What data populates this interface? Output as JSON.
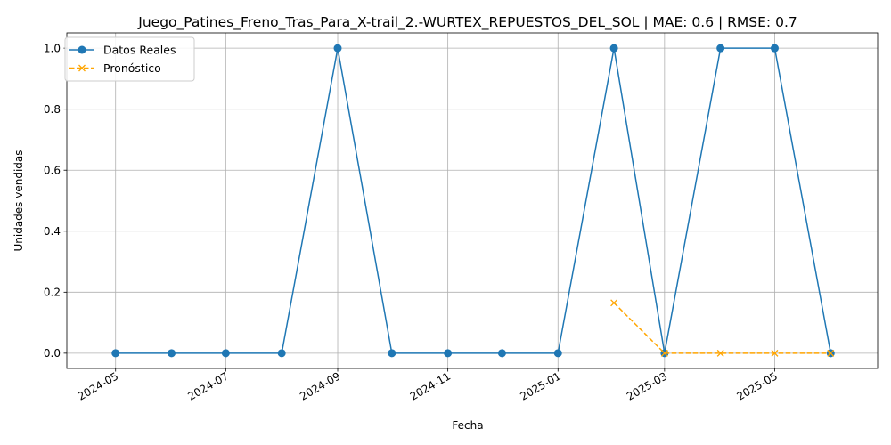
{
  "chart_data": {
    "type": "line",
    "title": "Juego_Patines_Freno_Tras_Para_X-trail_2.-WURTEX_REPUESTOS_DEL_SOL | MAE: 0.6 | RMSE: 0.7",
    "xlabel": "Fecha",
    "ylabel": "Unidades vendidas",
    "ylim": [
      -0.05,
      1.05
    ],
    "xlim": [
      "2024-04-04",
      "2025-06-27"
    ],
    "grid": true,
    "legend_position": "top-left",
    "x_ticks": [
      "2024-05",
      "2024-07",
      "2024-09",
      "2024-11",
      "2025-01",
      "2025-03",
      "2025-05"
    ],
    "x_tick_dates": [
      "2024-05-01",
      "2024-07-01",
      "2024-09-01",
      "2024-11-01",
      "2025-01-01",
      "2025-03-01",
      "2025-05-01"
    ],
    "y_ticks": [
      "0.0",
      "0.2",
      "0.4",
      "0.6",
      "0.8",
      "1.0"
    ],
    "y_tick_values": [
      0.0,
      0.2,
      0.4,
      0.6,
      0.8,
      1.0
    ],
    "series": [
      {
        "name": "Datos Reales",
        "color": "#1f77b4",
        "marker": "circle",
        "line_style": "solid",
        "x": [
          "2024-05-01",
          "2024-06-01",
          "2024-07-01",
          "2024-08-01",
          "2024-09-01",
          "2024-10-01",
          "2024-11-01",
          "2024-12-01",
          "2025-01-01",
          "2025-02-01",
          "2025-03-01",
          "2025-04-01",
          "2025-05-01",
          "2025-06-01"
        ],
        "values": [
          0,
          0,
          0,
          0,
          1,
          0,
          0,
          0,
          0,
          1,
          0,
          1,
          1,
          0
        ]
      },
      {
        "name": "Pronóstico",
        "color": "#ffa500",
        "marker": "x",
        "line_style": "dashed",
        "x": [
          "2025-02-01",
          "2025-03-01",
          "2025-04-01",
          "2025-05-01",
          "2025-06-01"
        ],
        "values": [
          0.165,
          0,
          0,
          0,
          0
        ]
      }
    ]
  }
}
